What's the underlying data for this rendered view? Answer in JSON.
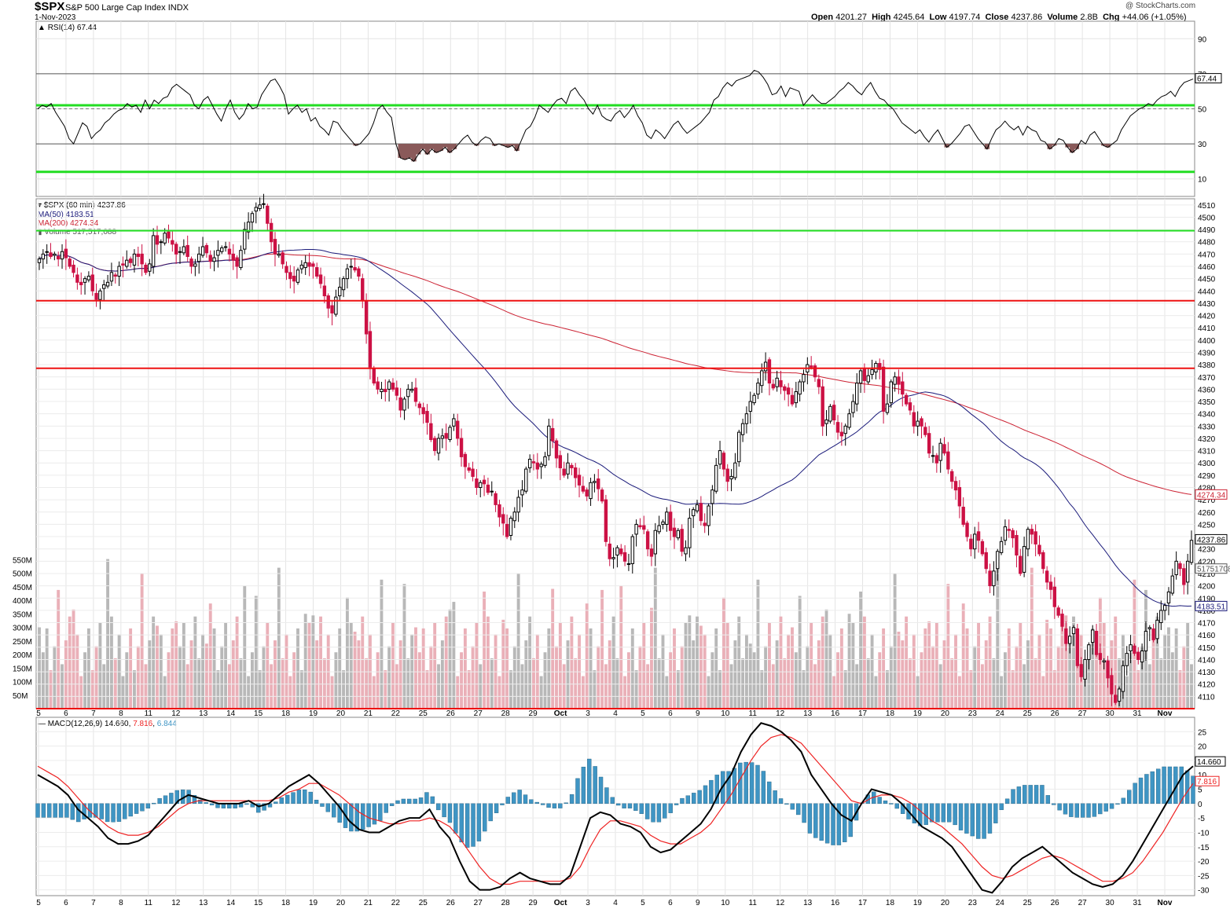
{
  "header": {
    "symbol": "$SPX",
    "name": "S&P 500 Large Cap Index",
    "exchange": "INDX",
    "date": "1-Nov-2023",
    "credit": "@ StockCharts.com",
    "open_label": "Open",
    "open": "4201.27",
    "high_label": "High",
    "high": "4245.64",
    "low_label": "Low",
    "low": "4197.74",
    "close_label": "Close",
    "close": "4237.86",
    "volume_label": "Volume",
    "volume": "2.8B",
    "chg_label": "Chg",
    "chg": "+44.06 (+1.05%)"
  },
  "legends": {
    "rsi": "RSI(14) 67.44",
    "price": "$SPX (60 min) 4237.86",
    "ma50": "MA(50) 4183.51",
    "ma200": "MA(200) 4274.34",
    "volume": "Volume 517,517,088",
    "macd_label": "MACD(12,26,9)",
    "macd_v": "14.660",
    "macd_sig": "7.816",
    "macd_hist": "6.844"
  },
  "colors": {
    "up": "#ffffff",
    "down": "#cc1144",
    "upEdge": "#000000",
    "ma50": "#1a1a7a",
    "ma200": "#cc2233",
    "green": "#22dd22",
    "red": "#ee1111",
    "volUp": "#b8b8b8",
    "volDown": "#eab0b8",
    "macd": "#000000",
    "signal": "#ee2222",
    "hist": "#3f95c4"
  },
  "chart_data": [
    {
      "type": "line",
      "name": "RSI(14)",
      "y_ticks": [
        10,
        30,
        50,
        70,
        90
      ],
      "ylim": [
        0,
        100
      ],
      "last": 67.44,
      "reference_lines": [
        30,
        70
      ],
      "green_lines": [
        52,
        14
      ],
      "values": [
        50,
        52,
        51,
        53,
        48,
        44,
        40,
        33,
        30,
        36,
        42,
        40,
        33,
        36,
        38,
        42,
        44,
        47,
        49,
        50,
        53,
        51,
        52,
        48,
        55,
        50,
        55,
        53,
        56,
        57,
        62,
        64,
        62,
        60,
        58,
        52,
        50,
        55,
        57,
        52,
        47,
        43,
        50,
        55,
        48,
        44,
        47,
        53,
        50,
        51,
        58,
        62,
        66,
        67,
        63,
        58,
        47,
        50,
        52,
        48,
        50,
        43,
        45,
        40,
        38,
        35,
        43,
        42,
        38,
        35,
        32,
        29,
        30,
        33,
        36,
        42,
        50,
        52,
        48,
        45,
        30,
        22,
        21,
        22,
        20,
        24,
        27,
        24,
        27,
        25,
        26,
        28,
        25,
        27,
        30,
        33,
        35,
        31,
        29,
        32,
        34,
        33,
        29,
        30,
        29,
        28,
        29,
        26,
        32,
        38,
        40,
        45,
        52,
        50,
        48,
        52,
        55,
        56,
        53,
        60,
        62,
        58,
        55,
        50,
        47,
        52,
        46,
        44,
        43,
        47,
        49,
        45,
        48,
        52,
        46,
        42,
        35,
        33,
        38,
        36,
        33,
        37,
        41,
        43,
        39,
        36,
        38,
        40,
        42,
        45,
        48,
        55,
        57,
        62,
        65,
        63,
        66,
        67,
        68,
        69,
        72,
        71,
        68,
        64,
        58,
        59,
        63,
        57,
        62,
        61,
        60,
        52,
        55,
        58,
        55,
        53,
        53,
        55,
        57,
        60,
        62,
        65,
        63,
        60,
        58,
        62,
        65,
        60,
        56,
        55,
        52,
        50,
        46,
        42,
        40,
        38,
        36,
        38,
        34,
        31,
        35,
        38,
        33,
        28,
        30,
        33,
        36,
        40,
        41,
        37,
        33,
        30,
        27,
        33,
        38,
        40,
        43,
        40,
        38,
        40,
        35,
        40,
        38,
        37,
        32,
        31,
        27,
        29,
        33,
        32,
        28,
        25,
        27,
        32,
        30,
        35,
        37,
        33,
        29,
        28,
        30,
        32,
        38,
        42,
        46,
        48,
        50,
        51,
        53,
        52,
        55,
        57,
        58,
        60,
        57,
        62,
        65,
        66,
        67
      ]
    },
    {
      "type": "candlestick",
      "name": "$SPX (60 min)",
      "timeframe": "60 min",
      "y_ticks": [
        4110,
        4120,
        4130,
        4140,
        4150,
        4160,
        4170,
        4180,
        4190,
        4200,
        4210,
        4220,
        4230,
        4240,
        4250,
        4260,
        4270,
        4280,
        4290,
        4300,
        4310,
        4320,
        4330,
        4340,
        4350,
        4360,
        4370,
        4380,
        4390,
        4400,
        4410,
        4420,
        4430,
        4440,
        4450,
        4460,
        4470,
        4480,
        4490,
        4500,
        4510
      ],
      "ylim": [
        4100,
        4515
      ],
      "x_tick_labels": [
        "5",
        "6",
        "7",
        "8",
        "11",
        "12",
        "13",
        "14",
        "15",
        "18",
        "19",
        "20",
        "21",
        "22",
        "25",
        "26",
        "27",
        "28",
        "29",
        "Oct",
        "3",
        "4",
        "5",
        "6",
        "9",
        "10",
        "11",
        "12",
        "13",
        "16",
        "17",
        "18",
        "19",
        "20",
        "23",
        "24",
        "25",
        "26",
        "27",
        "30",
        "31",
        "Nov"
      ],
      "last_close": 4237.86,
      "ma50_last": 4183.51,
      "ma200_last": 4274.34,
      "horizontal_lines": [
        {
          "value": 4489,
          "color": "green"
        },
        {
          "value": 4432,
          "color": "red"
        },
        {
          "value": 4377,
          "color": "red"
        }
      ],
      "closes": [
        4466,
        4470,
        4472,
        4468,
        4470,
        4466,
        4472,
        4467,
        4460,
        4455,
        4447,
        4445,
        4450,
        4452,
        4440,
        4433,
        4440,
        4445,
        4447,
        4455,
        4452,
        4460,
        4461,
        4465,
        4463,
        4470,
        4468,
        4462,
        4455,
        4462,
        4485,
        4478,
        4480,
        4487,
        4483,
        4478,
        4470,
        4472,
        4476,
        4468,
        4460,
        4462,
        4470,
        4476,
        4471,
        4464,
        4467,
        4473,
        4475,
        4476,
        4470,
        4465,
        4460,
        4473,
        4490,
        4496,
        4503,
        4508,
        4510,
        4511,
        4495,
        4480,
        4470,
        4470,
        4462,
        4455,
        4450,
        4448,
        4457,
        4461,
        4463,
        4460,
        4460,
        4452,
        4446,
        4436,
        4426,
        4422,
        4435,
        4443,
        4450,
        4458,
        4460,
        4457,
        4452,
        4432,
        4405,
        4378,
        4365,
        4360,
        4360,
        4358,
        4366,
        4360,
        4355,
        4343,
        4352,
        4360,
        4360,
        4350,
        4345,
        4340,
        4333,
        4319,
        4310,
        4320,
        4322,
        4320,
        4329,
        4336,
        4320,
        4305,
        4297,
        4294,
        4289,
        4280,
        4284,
        4283,
        4276,
        4277,
        4266,
        4256,
        4251,
        4240,
        4255,
        4260,
        4272,
        4278,
        4295,
        4303,
        4300,
        4295,
        4299,
        4305,
        4330,
        4318,
        4304,
        4296,
        4290,
        4300,
        4296,
        4288,
        4282,
        4277,
        4273,
        4284,
        4285,
        4279,
        4269,
        4236,
        4222,
        4223,
        4231,
        4226,
        4220,
        4218,
        4240,
        4250,
        4248,
        4246,
        4230,
        4224,
        4245,
        4249,
        4252,
        4260,
        4245,
        4240,
        4245,
        4228,
        4231,
        4255,
        4262,
        4266,
        4253,
        4249,
        4265,
        4278,
        4298,
        4310,
        4295,
        4285,
        4289,
        4300,
        4325,
        4332,
        4340,
        4350,
        4355,
        4365,
        4375,
        4382,
        4365,
        4361,
        4369,
        4362,
        4359,
        4356,
        4348,
        4358,
        4366,
        4372,
        4380,
        4378,
        4370,
        4362,
        4330,
        4335,
        4346,
        4335,
        4325,
        4322,
        4330,
        4340,
        4350,
        4365,
        4375,
        4367,
        4371,
        4376,
        4381,
        4376,
        4342,
        4348,
        4366,
        4370,
        4364,
        4356,
        4348,
        4343,
        4330,
        4334,
        4330,
        4323,
        4308,
        4306,
        4300,
        4316,
        4308,
        4295,
        4285,
        4278,
        4265,
        4250,
        4240,
        4230,
        4242,
        4237,
        4226,
        4214,
        4200,
        4212,
        4228,
        4236,
        4248,
        4245,
        4239,
        4225,
        4210,
        4232,
        4246,
        4242,
        4234,
        4226,
        4214,
        4203,
        4197,
        4183,
        4176,
        4167,
        4153,
        4159,
        4166,
        4135,
        4126,
        4140,
        4152,
        4164,
        4144,
        4140,
        4139,
        4125,
        4112,
        4105,
        4116,
        4135,
        4145,
        4152,
        4145,
        4140,
        4147,
        4163,
        4166,
        4156,
        4172,
        4180,
        4184,
        4195,
        4208,
        4220,
        4214,
        4201,
        4220,
        4237
      ]
    },
    {
      "type": "bar",
      "name": "Volume",
      "y_ticks": [
        "50M",
        "100M",
        "150M",
        "200M",
        "250M",
        "300M",
        "350M",
        "400M",
        "450M",
        "500M",
        "550M"
      ],
      "last": 517517088
    },
    {
      "type": "line",
      "name": "MACD(12,26,9)",
      "series": [
        {
          "name": "MACD(12,26,9)",
          "last": 14.66
        },
        {
          "name": "signal",
          "last": 7.816
        },
        {
          "name": "histogram",
          "last": 6.844
        }
      ],
      "y_ticks": [
        -30,
        -25,
        -20,
        -15,
        -10,
        -5,
        0,
        5,
        10,
        15,
        20,
        25
      ],
      "ylim": [
        -32,
        30
      ],
      "x_tick_labels": [
        "5",
        "6",
        "7",
        "8",
        "11",
        "12",
        "13",
        "14",
        "15",
        "18",
        "19",
        "20",
        "21",
        "22",
        "25",
        "26",
        "27",
        "28",
        "29",
        "Oct",
        "3",
        "4",
        "5",
        "6",
        "9",
        "10",
        "11",
        "12",
        "13",
        "16",
        "17",
        "18",
        "19",
        "20",
        "23",
        "24",
        "25",
        "26",
        "27",
        "30",
        "31",
        "Nov"
      ],
      "macd": [
        10,
        8,
        6,
        3,
        -2,
        -5,
        -8,
        -12,
        -14,
        -14,
        -13,
        -11,
        -7,
        -3,
        1,
        3,
        2,
        1,
        0,
        0,
        0,
        1,
        -1,
        0,
        3,
        6,
        8,
        10,
        7,
        3,
        -1,
        -6,
        -9,
        -10,
        -10,
        -8,
        -6,
        -5,
        -5,
        -2,
        -8,
        -12,
        -20,
        -27,
        -30,
        -30,
        -29,
        -26,
        -24,
        -26,
        -27,
        -28,
        -28,
        -25,
        -15,
        -5,
        -3,
        -4,
        -7,
        -8,
        -10,
        -15,
        -17,
        -16,
        -13,
        -10,
        -7,
        -2,
        5,
        10,
        18,
        24,
        28,
        27,
        25,
        22,
        18,
        10,
        5,
        0,
        -4,
        -6,
        0,
        5,
        4,
        3,
        0,
        -4,
        -8,
        -10,
        -12,
        -15,
        -20,
        -25,
        -30,
        -31,
        -27,
        -22,
        -19,
        -17,
        -15,
        -18,
        -21,
        -24,
        -26,
        -28,
        -29,
        -28,
        -25,
        -20,
        -14,
        -8,
        -2,
        4,
        10,
        13
      ],
      "signal": [
        13,
        11,
        9,
        6,
        2,
        -2,
        -5,
        -8,
        -10,
        -11,
        -11,
        -10,
        -8,
        -5,
        -2,
        0,
        1,
        1,
        1,
        1,
        1,
        1,
        1,
        1,
        2,
        4,
        5,
        7,
        7,
        5,
        3,
        0,
        -3,
        -5,
        -6,
        -7,
        -7,
        -6,
        -6,
        -5,
        -6,
        -8,
        -12,
        -17,
        -22,
        -26,
        -28,
        -28,
        -27,
        -27,
        -27,
        -27,
        -27,
        -26,
        -22,
        -15,
        -9,
        -6,
        -6,
        -7,
        -8,
        -11,
        -13,
        -14,
        -14,
        -12,
        -10,
        -7,
        -2,
        3,
        9,
        15,
        20,
        23,
        24,
        23,
        21,
        17,
        13,
        9,
        5,
        1,
        0,
        2,
        3,
        3,
        2,
        0,
        -3,
        -6,
        -8,
        -11,
        -14,
        -18,
        -22,
        -25,
        -26,
        -25,
        -23,
        -21,
        -19,
        -18,
        -19,
        -21,
        -23,
        -25,
        -27,
        -27,
        -26,
        -24,
        -20,
        -15,
        -10,
        -4,
        2,
        7
      ]
    }
  ]
}
